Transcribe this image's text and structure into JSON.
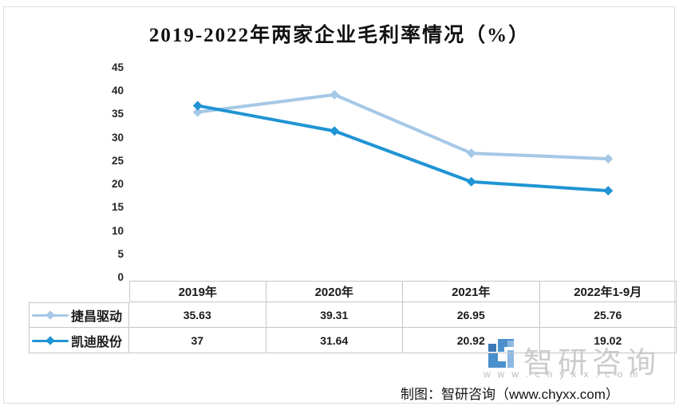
{
  "chart_data": {
    "type": "line",
    "title": "2019-2022年两家企业毛利率情况（%）",
    "categories": [
      "2019年",
      "2020年",
      "2021年",
      "2022年1-9月"
    ],
    "series": [
      {
        "name": "捷昌驱动",
        "values": [
          35.63,
          39.31,
          26.95,
          25.76
        ],
        "color": "#A5C8E6"
      },
      {
        "name": "凯迪股份",
        "values": [
          37,
          31.64,
          20.92,
          19.02
        ],
        "color": "#2094D4"
      }
    ],
    "yticks": [
      45,
      40,
      35,
      30,
      25,
      20,
      15,
      10,
      5,
      0
    ],
    "ylim": [
      0,
      45
    ],
    "grid": false,
    "legend_position": "table-left",
    "marker": "diamond",
    "table_shown": true
  },
  "watermark": {
    "brand": "智研咨询",
    "url": "www.chyxx.com",
    "logo_color_main": "#4a90ce",
    "logo_color_dark": "#3b79b8",
    "logo_color_light": "#8db9e2"
  },
  "footer": {
    "caption": "制图：智研咨询（www.chyxx.com）"
  }
}
